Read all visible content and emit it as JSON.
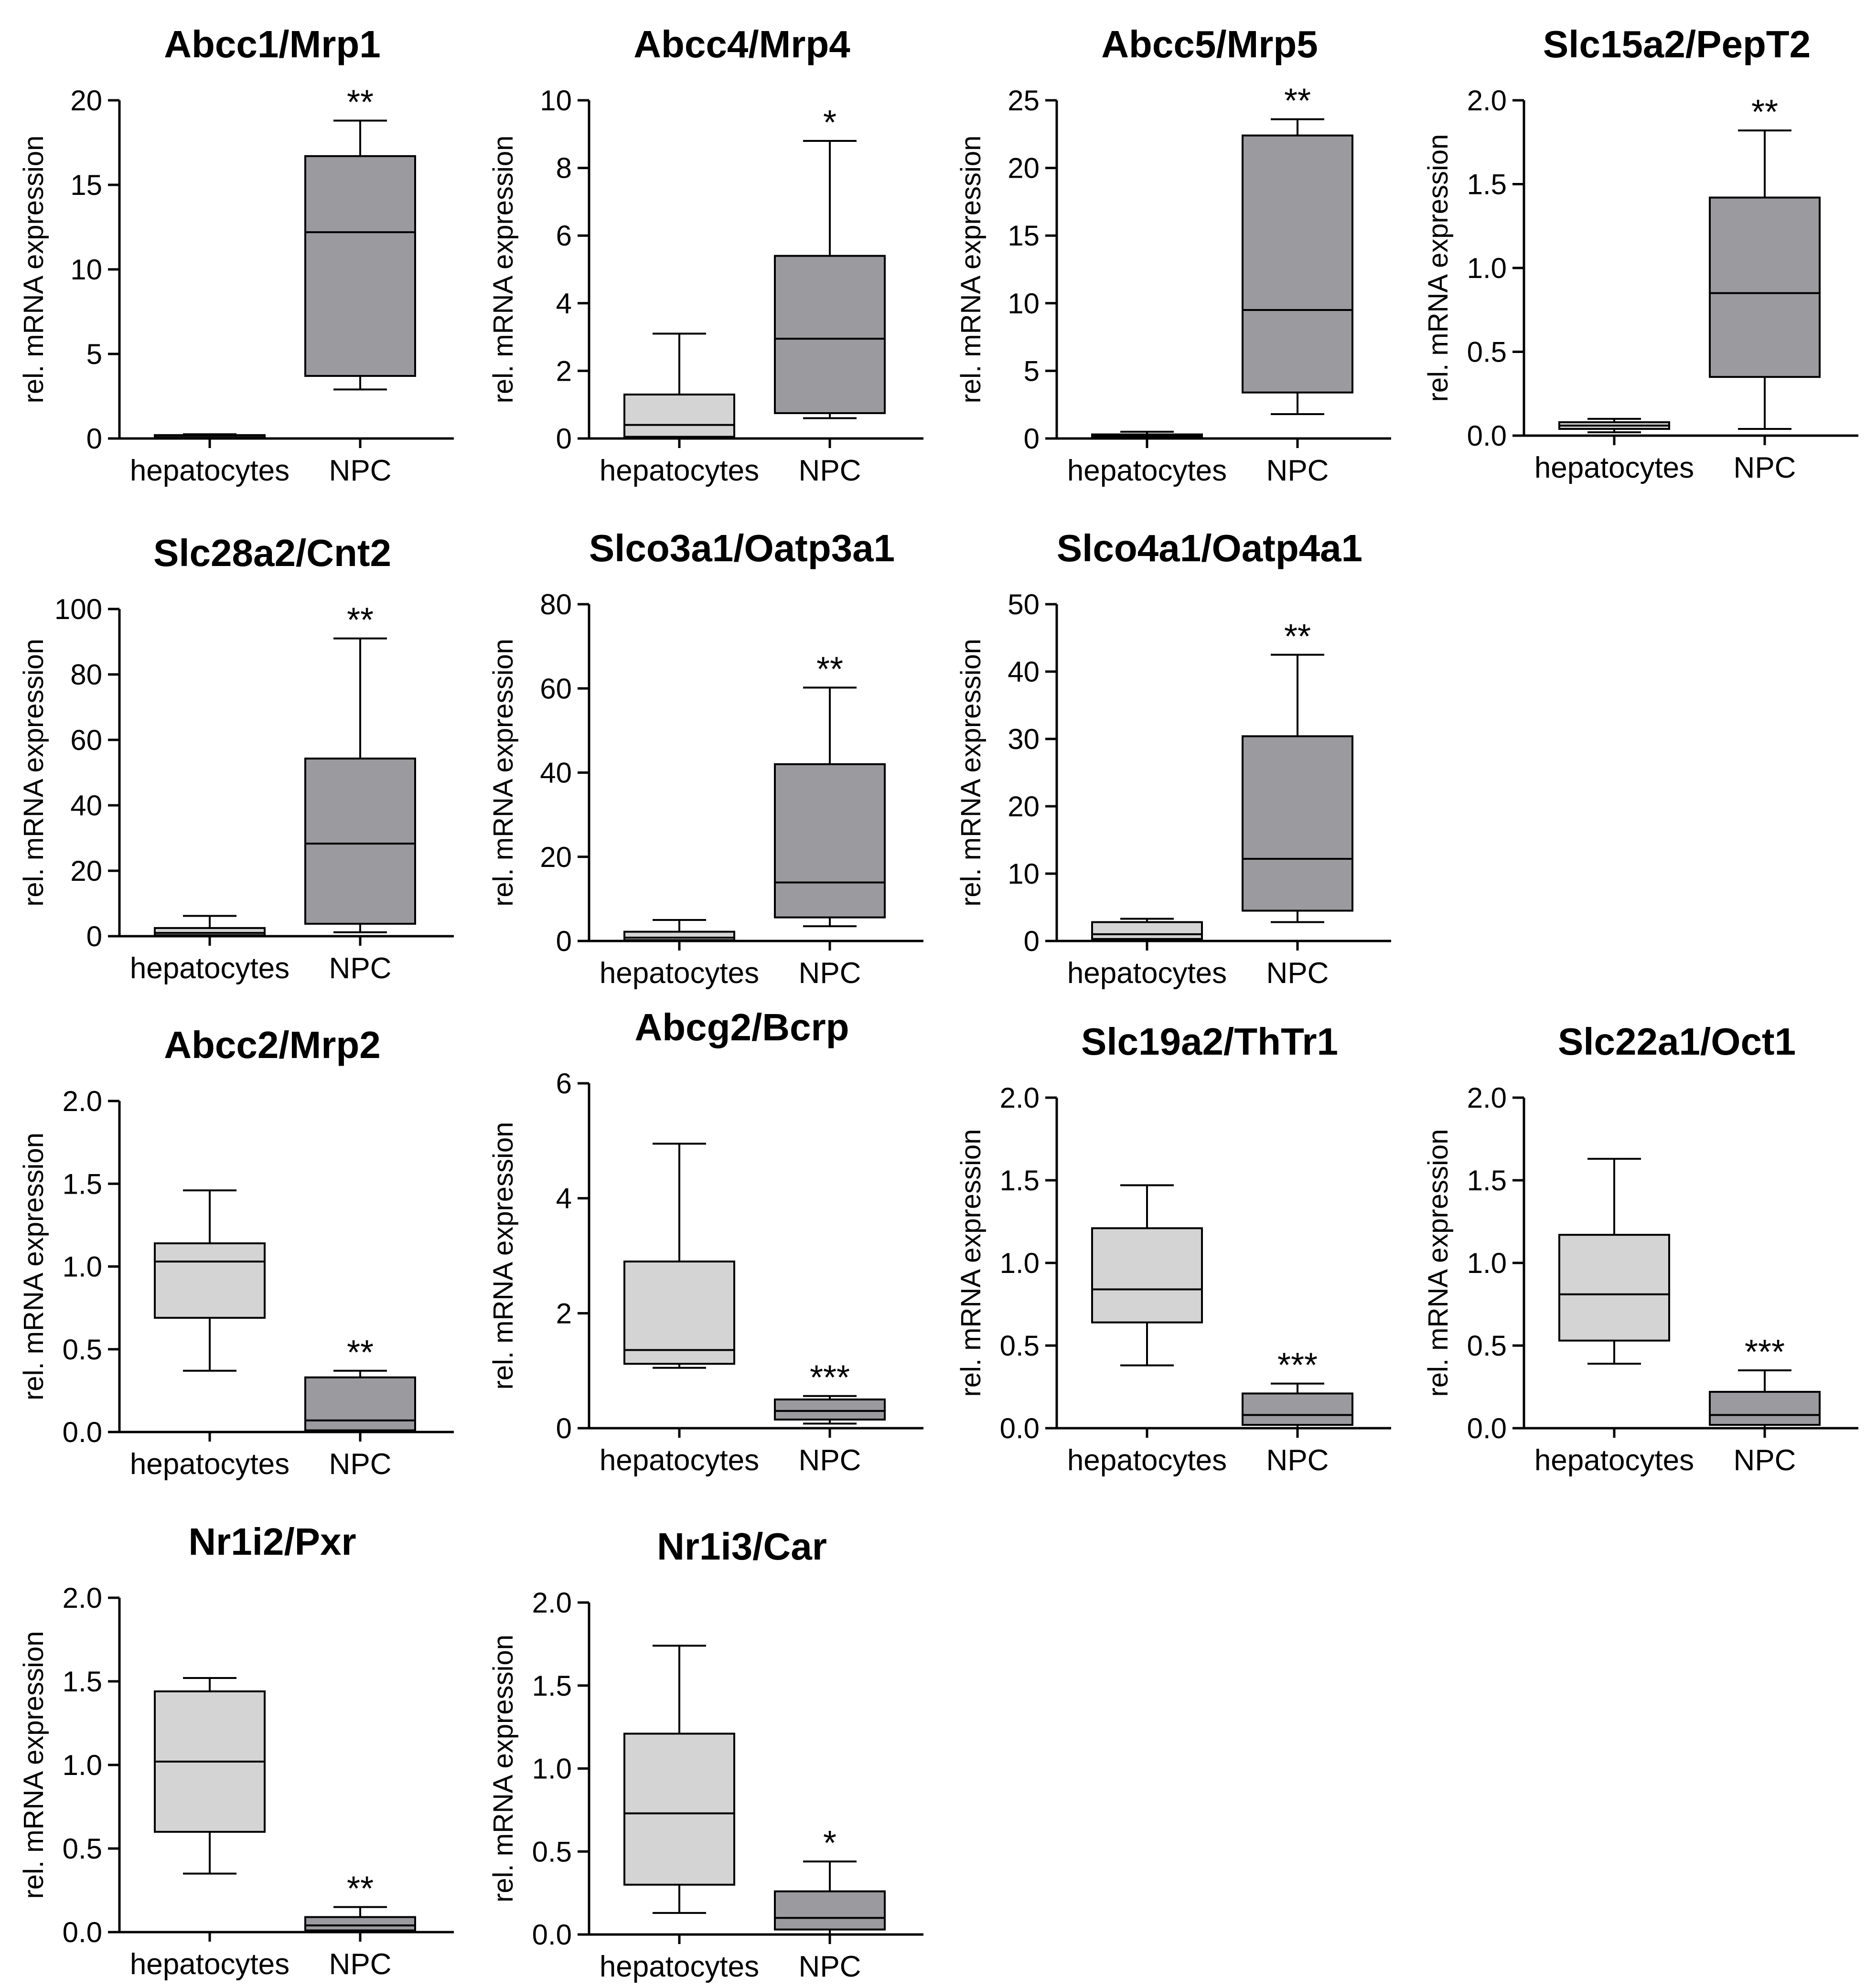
{
  "colors": {
    "hepatocytes_fill": "#d4d4d4",
    "npc_fill": "#9a9a9f",
    "stroke": "#000000"
  },
  "chart_data": [
    {
      "type": "box",
      "title": "Abcc1/Mrp1",
      "ylabel": "rel. mRNA expression",
      "categories": [
        "hepatocytes",
        "NPC"
      ],
      "ylim": [
        0,
        20
      ],
      "yticks": [
        0,
        5,
        10,
        15,
        20
      ],
      "boxes": [
        {
          "group": "hepatocytes",
          "min": 0.05,
          "q1": 0.1,
          "median": 0.15,
          "q3": 0.2,
          "max": 0.25
        },
        {
          "group": "NPC",
          "min": 2.9,
          "q1": 3.7,
          "median": 12.2,
          "q3": 16.7,
          "max": 18.8
        }
      ],
      "significance": "**"
    },
    {
      "type": "box",
      "title": "Abcc4/Mrp4",
      "ylabel": "rel. mRNA expression",
      "categories": [
        "hepatocytes",
        "NPC"
      ],
      "ylim": [
        0,
        10
      ],
      "yticks": [
        0,
        2,
        4,
        6,
        8,
        10
      ],
      "boxes": [
        {
          "group": "hepatocytes",
          "min": 0.0,
          "q1": 0.05,
          "median": 0.4,
          "q3": 1.3,
          "max": 3.1
        },
        {
          "group": "NPC",
          "min": 0.6,
          "q1": 0.75,
          "median": 2.95,
          "q3": 5.4,
          "max": 8.8
        }
      ],
      "significance": "*"
    },
    {
      "type": "box",
      "title": "Abcc5/Mrp5",
      "ylabel": "rel. mRNA expression",
      "categories": [
        "hepatocytes",
        "NPC"
      ],
      "ylim": [
        0,
        25
      ],
      "yticks": [
        0,
        5,
        10,
        15,
        20,
        25
      ],
      "boxes": [
        {
          "group": "hepatocytes",
          "min": 0.05,
          "q1": 0.1,
          "median": 0.2,
          "q3": 0.3,
          "max": 0.5
        },
        {
          "group": "NPC",
          "min": 1.8,
          "q1": 3.4,
          "median": 9.5,
          "q3": 22.4,
          "max": 23.6
        }
      ],
      "significance": "**"
    },
    {
      "type": "box",
      "title": "Slc15a2/PepT2",
      "ylabel": "rel. mRNA expression",
      "categories": [
        "hepatocytes",
        "NPC"
      ],
      "ylim": [
        0,
        2.0
      ],
      "yticks": [
        0.0,
        0.5,
        1.0,
        1.5,
        2.0
      ],
      "decimals": 1,
      "boxes": [
        {
          "group": "hepatocytes",
          "min": 0.02,
          "q1": 0.04,
          "median": 0.06,
          "q3": 0.08,
          "max": 0.1
        },
        {
          "group": "NPC",
          "min": 0.04,
          "q1": 0.35,
          "median": 0.85,
          "q3": 1.42,
          "max": 1.82
        }
      ],
      "significance": "**"
    },
    {
      "type": "box",
      "title": "Slc28a2/Cnt2",
      "ylabel": "rel. mRNA expression",
      "categories": [
        "hepatocytes",
        "NPC"
      ],
      "ylim": [
        0,
        100
      ],
      "yticks": [
        0,
        20,
        40,
        60,
        80,
        100
      ],
      "boxes": [
        {
          "group": "hepatocytes",
          "min": 0.0,
          "q1": 0.3,
          "median": 1.0,
          "q3": 2.5,
          "max": 6.2
        },
        {
          "group": "NPC",
          "min": 1.2,
          "q1": 3.8,
          "median": 28.3,
          "q3": 54.3,
          "max": 91.0
        }
      ],
      "significance": "**"
    },
    {
      "type": "box",
      "title": "Slco3a1/Oatp3a1",
      "ylabel": "rel. mRNA expression",
      "categories": [
        "hepatocytes",
        "NPC"
      ],
      "ylim": [
        0,
        80
      ],
      "yticks": [
        0,
        20,
        40,
        60,
        80
      ],
      "boxes": [
        {
          "group": "hepatocytes",
          "min": 0.0,
          "q1": 0.2,
          "median": 0.8,
          "q3": 2.2,
          "max": 5.0
        },
        {
          "group": "NPC",
          "min": 3.5,
          "q1": 5.6,
          "median": 13.9,
          "q3": 42.0,
          "max": 60.2
        }
      ],
      "significance": "**"
    },
    {
      "type": "box",
      "title": "Slco4a1/Oatp4a1",
      "ylabel": "rel. mRNA expression",
      "categories": [
        "hepatocytes",
        "NPC"
      ],
      "ylim": [
        0,
        50
      ],
      "yticks": [
        0,
        10,
        20,
        30,
        40,
        50
      ],
      "boxes": [
        {
          "group": "hepatocytes",
          "min": 0.0,
          "q1": 0.3,
          "median": 1.0,
          "q3": 2.8,
          "max": 3.3
        },
        {
          "group": "NPC",
          "min": 2.8,
          "q1": 4.5,
          "median": 12.2,
          "q3": 30.4,
          "max": 42.5
        }
      ],
      "significance": "**"
    },
    {
      "type": "box",
      "title": "Abcc2/Mrp2",
      "ylabel": "rel. mRNA expression",
      "categories": [
        "hepatocytes",
        "NPC"
      ],
      "ylim": [
        0,
        2.0
      ],
      "yticks": [
        0.0,
        0.5,
        1.0,
        1.5,
        2.0
      ],
      "decimals": 1,
      "boxes": [
        {
          "group": "hepatocytes",
          "min": 0.37,
          "q1": 0.69,
          "median": 1.03,
          "q3": 1.14,
          "max": 1.46
        },
        {
          "group": "NPC",
          "min": 0.0,
          "q1": 0.01,
          "median": 0.07,
          "q3": 0.33,
          "max": 0.37
        }
      ],
      "significance": "**"
    },
    {
      "type": "box",
      "title": "Abcg2/Bcrp",
      "ylabel": "rel. mRNA expression",
      "categories": [
        "hepatocytes",
        "NPC"
      ],
      "ylim": [
        0,
        6
      ],
      "yticks": [
        0,
        2,
        4,
        6
      ],
      "boxes": [
        {
          "group": "hepatocytes",
          "min": 1.05,
          "q1": 1.12,
          "median": 1.36,
          "q3": 2.9,
          "max": 4.95
        },
        {
          "group": "NPC",
          "min": 0.08,
          "q1": 0.15,
          "median": 0.3,
          "q3": 0.5,
          "max": 0.56
        }
      ],
      "significance": "***"
    },
    {
      "type": "box",
      "title": "Slc19a2/ThTr1",
      "ylabel": "rel. mRNA expression",
      "categories": [
        "hepatocytes",
        "NPC"
      ],
      "ylim": [
        0,
        2.0
      ],
      "yticks": [
        0.0,
        0.5,
        1.0,
        1.5,
        2.0
      ],
      "decimals": 1,
      "boxes": [
        {
          "group": "hepatocytes",
          "min": 0.38,
          "q1": 0.64,
          "median": 0.84,
          "q3": 1.21,
          "max": 1.47
        },
        {
          "group": "NPC",
          "min": 0.0,
          "q1": 0.02,
          "median": 0.08,
          "q3": 0.21,
          "max": 0.27
        }
      ],
      "significance": "***"
    },
    {
      "type": "box",
      "title": "Slc22a1/Oct1",
      "ylabel": "rel. mRNA expression",
      "categories": [
        "hepatocytes",
        "NPC"
      ],
      "ylim": [
        0,
        2.0
      ],
      "yticks": [
        0.0,
        0.5,
        1.0,
        1.5,
        2.0
      ],
      "decimals": 1,
      "boxes": [
        {
          "group": "hepatocytes",
          "min": 0.39,
          "q1": 0.53,
          "median": 0.81,
          "q3": 1.17,
          "max": 1.63
        },
        {
          "group": "NPC",
          "min": 0.0,
          "q1": 0.02,
          "median": 0.08,
          "q3": 0.22,
          "max": 0.35
        }
      ],
      "significance": "***"
    },
    {
      "type": "box",
      "title": "Nr1i2/Pxr",
      "ylabel": "rel. mRNA expression",
      "categories": [
        "hepatocytes",
        "NPC"
      ],
      "ylim": [
        0,
        2.0
      ],
      "yticks": [
        0.0,
        0.5,
        1.0,
        1.5,
        2.0
      ],
      "decimals": 1,
      "boxes": [
        {
          "group": "hepatocytes",
          "min": 0.35,
          "q1": 0.6,
          "median": 1.02,
          "q3": 1.44,
          "max": 1.52
        },
        {
          "group": "NPC",
          "min": 0.0,
          "q1": 0.01,
          "median": 0.04,
          "q3": 0.09,
          "max": 0.15
        }
      ],
      "significance": "**"
    },
    {
      "type": "box",
      "title": "Nr1i3/Car",
      "ylabel": "rel. mRNA expression",
      "categories": [
        "hepatocytes",
        "NPC"
      ],
      "ylim": [
        0,
        2.0
      ],
      "yticks": [
        0.0,
        0.5,
        1.0,
        1.5,
        2.0
      ],
      "decimals": 1,
      "boxes": [
        {
          "group": "hepatocytes",
          "min": 0.13,
          "q1": 0.3,
          "median": 0.73,
          "q3": 1.21,
          "max": 1.74
        },
        {
          "group": "NPC",
          "min": 0.0,
          "q1": 0.03,
          "median": 0.1,
          "q3": 0.26,
          "max": 0.44
        }
      ],
      "significance": "*"
    }
  ]
}
